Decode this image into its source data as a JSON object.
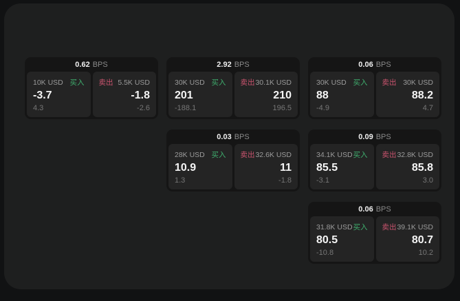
{
  "colors": {
    "buy": "#3fae6e",
    "sell": "#c9536e",
    "window_bg": "#1e1f1f",
    "card_bg": "#151515",
    "panel_bg": "#242424"
  },
  "cards": [
    {
      "spread": "0.62",
      "unit": "BPS",
      "buy": {
        "size": "10K USD",
        "side_label": "买入",
        "price": "-3.7",
        "change": "4.3"
      },
      "sell": {
        "size": "5.5K USD",
        "side_label": "卖出",
        "price": "-1.8",
        "change": "-2.6"
      }
    },
    {
      "spread": "2.92",
      "unit": "BPS",
      "buy": {
        "size": "30K USD",
        "side_label": "买入",
        "price": "201",
        "change": "-188.1"
      },
      "sell": {
        "size": "30.1K USD",
        "side_label": "卖出",
        "price": "210",
        "change": "196.5"
      }
    },
    {
      "spread": "0.06",
      "unit": "BPS",
      "buy": {
        "size": "30K USD",
        "side_label": "买入",
        "price": "88",
        "change": "-4.9"
      },
      "sell": {
        "size": "30K USD",
        "side_label": "卖出",
        "price": "88.2",
        "change": "4.7"
      }
    },
    {
      "spread": "0.03",
      "unit": "BPS",
      "buy": {
        "size": "28K USD",
        "side_label": "买入",
        "price": "10.9",
        "change": "1.3"
      },
      "sell": {
        "size": "32.6K USD",
        "side_label": "卖出",
        "price": "11",
        "change": "-1.8"
      }
    },
    {
      "spread": "0.09",
      "unit": "BPS",
      "buy": {
        "size": "34.1K USD",
        "side_label": "买入",
        "price": "85.5",
        "change": "-3.1"
      },
      "sell": {
        "size": "32.8K USD",
        "side_label": "卖出",
        "price": "85.8",
        "change": "3.0"
      }
    },
    {
      "spread": "0.06",
      "unit": "BPS",
      "buy": {
        "size": "31.8K USD",
        "side_label": "买入",
        "price": "80.5",
        "change": "-10.8"
      },
      "sell": {
        "size": "39.1K USD",
        "side_label": "卖出",
        "price": "80.7",
        "change": "10.2"
      }
    }
  ]
}
